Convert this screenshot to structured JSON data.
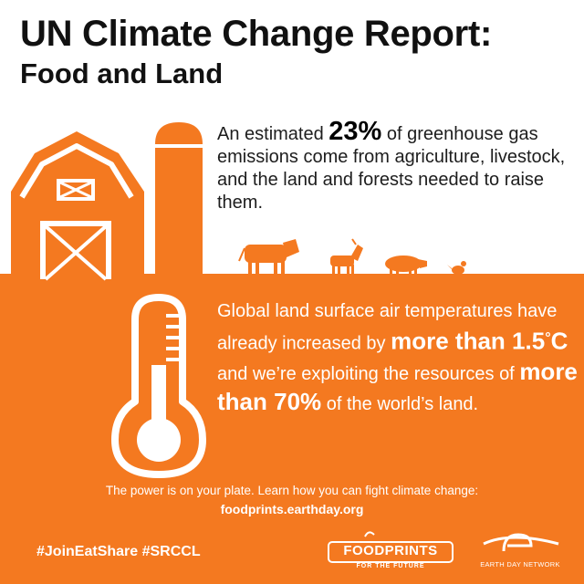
{
  "header": {
    "title": "UN Climate Change Report:",
    "subtitle": "Food and Land"
  },
  "intro": {
    "pre": "An estimated",
    "stat": "23%",
    "post": "of greenhouse gas emissions come from agriculture, livestock, and the land and forests needed to raise them."
  },
  "temperature": {
    "text1": "Global land surface air temperatures have already increased by",
    "emph1": "more than 1.5",
    "degree": "°",
    "emph2": "C",
    "text2": "and we’re exploiting the resources of",
    "emph3": "more than 70%",
    "text3": "of the world’s land."
  },
  "cta": {
    "line": "The power is on your plate. Learn how you can fight climate change:",
    "url": "foodprints.earthday.org"
  },
  "footer": {
    "hashtags": "#JoinEatShare #SRCCL",
    "foodprints_logo": "FOODPRINTS",
    "foodprints_tagline": "FOR THE FUTURE",
    "edn_logo": "EARTH DAY NETWORK"
  },
  "colors": {
    "accent": "#f47920",
    "text": "#111111",
    "background": "#ffffff"
  }
}
